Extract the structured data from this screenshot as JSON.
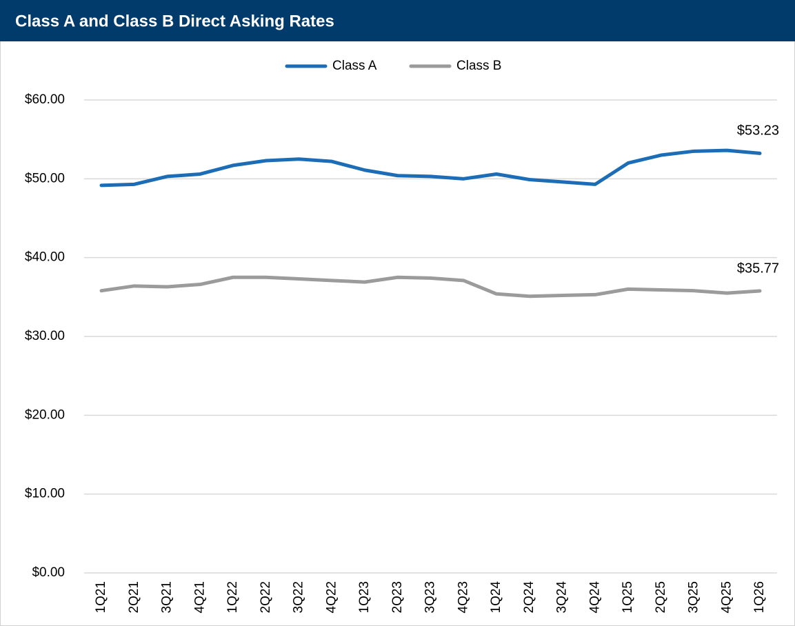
{
  "chart_data": {
    "type": "line",
    "title": "Class A and Class B Direct Asking Rates",
    "categories": [
      "1Q21",
      "2Q21",
      "3Q21",
      "4Q21",
      "1Q22",
      "2Q22",
      "3Q22",
      "4Q22",
      "1Q23",
      "2Q23",
      "3Q23",
      "4Q23",
      "1Q24",
      "2Q24",
      "3Q24",
      "4Q24",
      "1Q25",
      "2Q25",
      "3Q25",
      "4Q25",
      "1Q26"
    ],
    "series": [
      {
        "name": "Class A",
        "color": "#1c6db5",
        "values": [
          49.17,
          49.3,
          50.3,
          50.6,
          51.7,
          52.3,
          52.5,
          52.2,
          51.1,
          50.4,
          50.3,
          50.0,
          50.6,
          49.9,
          49.6,
          49.3,
          52.0,
          53.0,
          53.5,
          53.6,
          53.23
        ],
        "value_labels": [
          null,
          null,
          null,
          null,
          null,
          null,
          null,
          null,
          null,
          null,
          null,
          null,
          null,
          null,
          null,
          null,
          null,
          null,
          null,
          null,
          "$53.23"
        ]
      },
      {
        "name": "Class B",
        "color": "#9b9b9b",
        "values": [
          35.8,
          36.4,
          36.3,
          36.6,
          37.5,
          37.5,
          37.3,
          37.1,
          36.9,
          37.5,
          37.4,
          37.1,
          35.4,
          35.1,
          35.2,
          35.3,
          36.0,
          35.9,
          35.8,
          35.5,
          35.77
        ],
        "value_labels": [
          null,
          null,
          null,
          null,
          null,
          null,
          null,
          null,
          null,
          null,
          null,
          null,
          null,
          null,
          null,
          null,
          null,
          null,
          null,
          null,
          "$35.77"
        ]
      }
    ],
    "ylim": [
      0,
      60
    ],
    "yticks": [
      {
        "value": 0,
        "label": "$0.00"
      },
      {
        "value": 10,
        "label": "$10.00"
      },
      {
        "value": 20,
        "label": "$20.00"
      },
      {
        "value": 30,
        "label": "$30.00"
      },
      {
        "value": 40,
        "label": "$40.00"
      },
      {
        "value": 50,
        "label": "$50.00"
      },
      {
        "value": 60,
        "label": "$60.00"
      }
    ],
    "grid": true,
    "legend": "top"
  }
}
